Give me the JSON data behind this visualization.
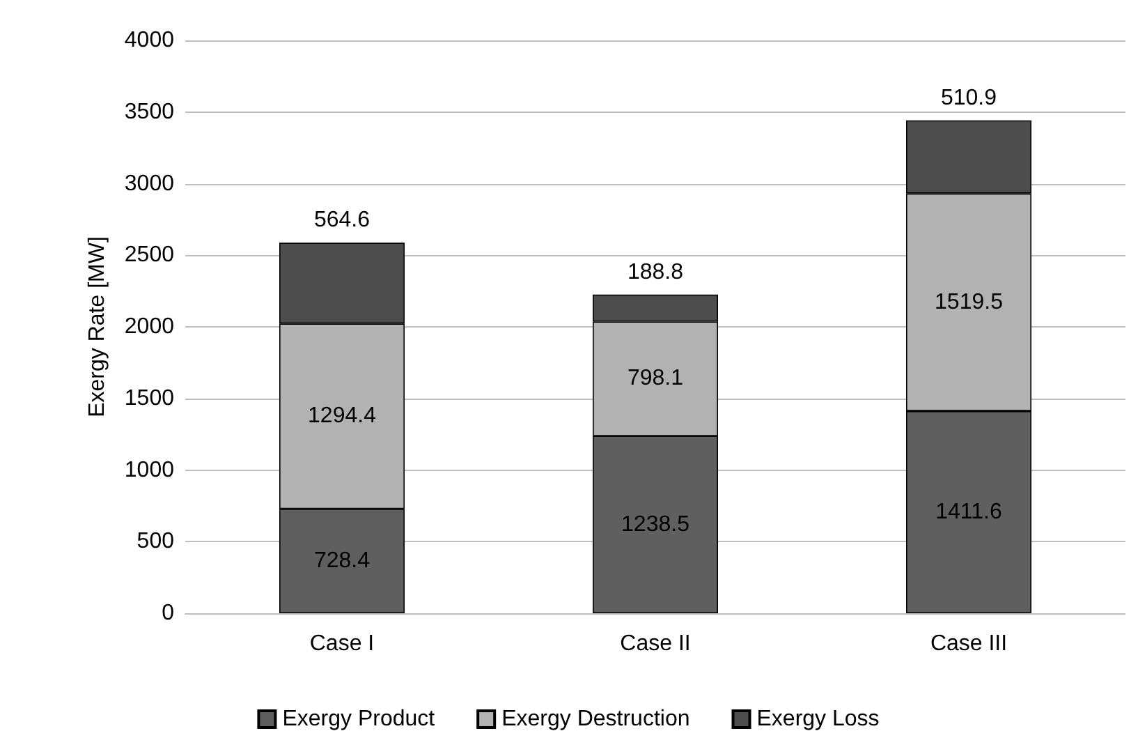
{
  "chart_data": {
    "type": "bar",
    "ylabel": "Exergy Rate [MW]",
    "categories": [
      "Case I",
      "Case II",
      "Case III"
    ],
    "series": [
      {
        "name": "Exergy Product",
        "color": "#5f5f5f",
        "values": [
          728.4,
          1238.5,
          1411.6
        ]
      },
      {
        "name": "Exergy Destruction",
        "color": "#b2b2b2",
        "values": [
          1294.4,
          798.1,
          1519.5
        ]
      },
      {
        "name": "Exergy Loss",
        "color": "#4d4d4d",
        "values": [
          564.6,
          188.8,
          510.9
        ]
      }
    ],
    "stacked": true,
    "ylim": [
      0,
      4000
    ],
    "yticks": [
      0,
      500,
      1000,
      1500,
      2000,
      2500,
      3000,
      3500,
      4000
    ],
    "grid": "y",
    "legend": "bottom",
    "data_labels": true
  }
}
